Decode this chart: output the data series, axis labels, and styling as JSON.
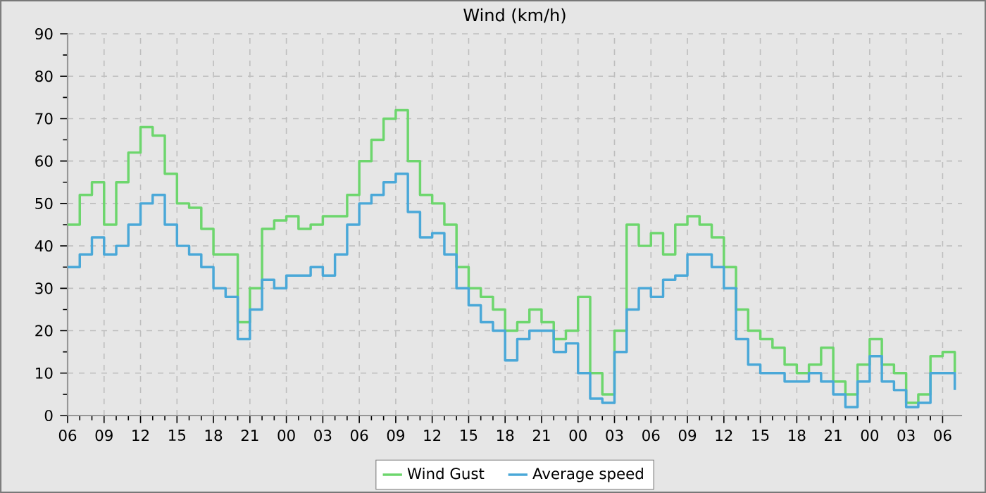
{
  "chart_data": {
    "type": "step",
    "title": "Wind (km/h)",
    "x": [
      6,
      7,
      8,
      9,
      10,
      11,
      12,
      13,
      14,
      15,
      16,
      17,
      18,
      19,
      20,
      21,
      22,
      23,
      24,
      25,
      26,
      27,
      28,
      29,
      30,
      31,
      32,
      33,
      34,
      35,
      36,
      37,
      38,
      39,
      40,
      41,
      42,
      43,
      44,
      45,
      46,
      47,
      48,
      49,
      50,
      51,
      52,
      53,
      54,
      55,
      56,
      57,
      58,
      59,
      60,
      61,
      62,
      63,
      64,
      65,
      66,
      67,
      68,
      69,
      70,
      71,
      72,
      73,
      74,
      75,
      76,
      77,
      78,
      79
    ],
    "series": [
      {
        "name": "Wind Gust",
        "color": "#6dd66d",
        "values": [
          45,
          52,
          55,
          45,
          55,
          62,
          68,
          66,
          57,
          50,
          49,
          44,
          38,
          38,
          22,
          30,
          44,
          46,
          47,
          44,
          45,
          47,
          47,
          52,
          60,
          65,
          70,
          72,
          60,
          52,
          50,
          45,
          35,
          30,
          28,
          25,
          20,
          22,
          25,
          22,
          18,
          20,
          28,
          10,
          5,
          20,
          45,
          40,
          43,
          38,
          45,
          47,
          45,
          42,
          35,
          25,
          20,
          18,
          16,
          12,
          10,
          12,
          16,
          8,
          5,
          12,
          18,
          12,
          10,
          3,
          5,
          14,
          15,
          10
        ]
      },
      {
        "name": "Average speed",
        "color": "#4aa8d8",
        "values": [
          35,
          38,
          42,
          38,
          40,
          45,
          50,
          52,
          45,
          40,
          38,
          35,
          30,
          28,
          18,
          25,
          32,
          30,
          33,
          33,
          35,
          33,
          38,
          45,
          50,
          52,
          55,
          57,
          48,
          42,
          43,
          38,
          30,
          26,
          22,
          20,
          13,
          18,
          20,
          20,
          15,
          17,
          10,
          4,
          3,
          15,
          25,
          30,
          28,
          32,
          33,
          38,
          38,
          35,
          30,
          18,
          12,
          10,
          10,
          8,
          8,
          10,
          8,
          5,
          2,
          8,
          14,
          8,
          6,
          2,
          3,
          10,
          10,
          6
        ]
      }
    ],
    "xlim": [
      6,
      79.6
    ],
    "xticks": [
      {
        "value": 6,
        "label": "06"
      },
      {
        "value": 9,
        "label": "09"
      },
      {
        "value": 12,
        "label": "12"
      },
      {
        "value": 15,
        "label": "15"
      },
      {
        "value": 18,
        "label": "18"
      },
      {
        "value": 21,
        "label": "21"
      },
      {
        "value": 24,
        "label": "00"
      },
      {
        "value": 27,
        "label": "03"
      },
      {
        "value": 30,
        "label": "06"
      },
      {
        "value": 33,
        "label": "09"
      },
      {
        "value": 36,
        "label": "12"
      },
      {
        "value": 39,
        "label": "15"
      },
      {
        "value": 42,
        "label": "18"
      },
      {
        "value": 45,
        "label": "21"
      },
      {
        "value": 48,
        "label": "00"
      },
      {
        "value": 51,
        "label": "03"
      },
      {
        "value": 54,
        "label": "06"
      },
      {
        "value": 57,
        "label": "09"
      },
      {
        "value": 60,
        "label": "12"
      },
      {
        "value": 63,
        "label": "15"
      },
      {
        "value": 66,
        "label": "18"
      },
      {
        "value": 69,
        "label": "21"
      },
      {
        "value": 72,
        "label": "00"
      },
      {
        "value": 75,
        "label": "03"
      },
      {
        "value": 78,
        "label": "06"
      }
    ],
    "ylim": [
      0,
      90
    ],
    "yticks": [
      0,
      10,
      20,
      30,
      40,
      50,
      60,
      70,
      80,
      90
    ],
    "grid": true,
    "legend": "bottom",
    "line_style": "solid",
    "marker": "none"
  }
}
